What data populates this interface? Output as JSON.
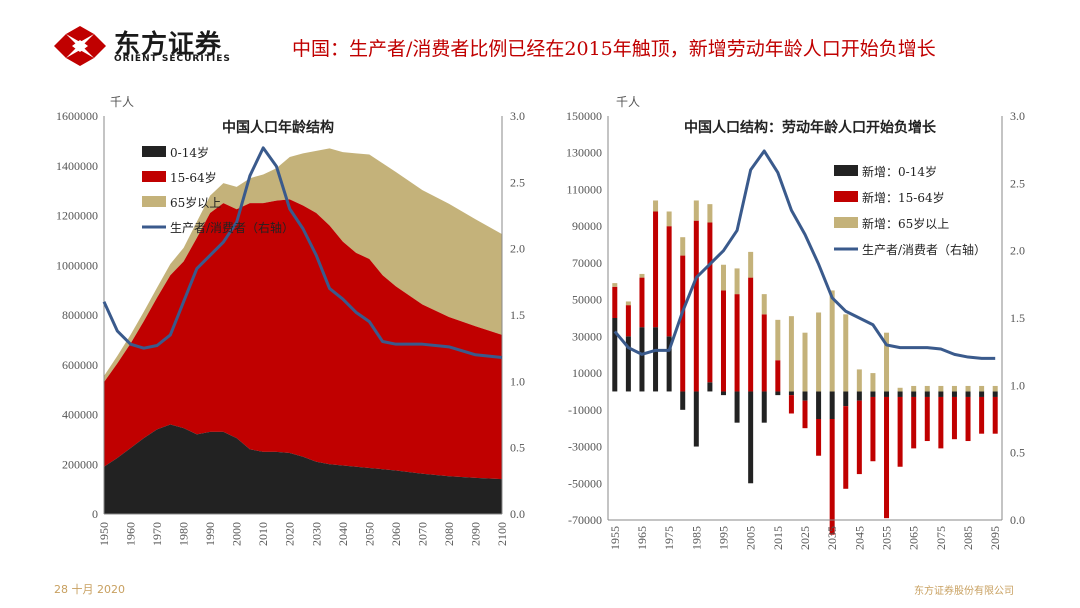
{
  "header": {
    "brand_name": "东方证券",
    "brand_sub": "ORIENT SECURITIES",
    "headline": "中国：生产者/消费者比例已经在2015年触顶，新增劳动年龄人口开始负增长"
  },
  "footer": {
    "date": "28 十月 2020",
    "company": "东方证券股份有限公司"
  },
  "colors": {
    "black": "#222222",
    "red": "#c00000",
    "tan": "#c4b27a",
    "blue": "#3a5a8c",
    "accent": "#c00000"
  },
  "chart_data": [
    {
      "type": "area",
      "title": "中国人口年龄结构",
      "unit_label": "千人",
      "x": [
        1950,
        1955,
        1960,
        1965,
        1970,
        1975,
        1980,
        1985,
        1990,
        1995,
        2000,
        2005,
        2010,
        2015,
        2020,
        2025,
        2030,
        2035,
        2040,
        2045,
        2050,
        2055,
        2060,
        2070,
        2080,
        2090,
        2100
      ],
      "xticks": [
        1950,
        1960,
        1970,
        1980,
        1990,
        2000,
        2010,
        2020,
        2030,
        2040,
        2050,
        2060,
        2070,
        2080,
        2090,
        2100
      ],
      "ylim": [
        0,
        1600000
      ],
      "yticks": [
        0,
        200000,
        400000,
        600000,
        800000,
        1000000,
        1200000,
        1400000,
        1600000
      ],
      "y2lim": [
        0.0,
        3.0
      ],
      "y2ticks": [
        "0.0",
        "0.5",
        "1.0",
        "1.5",
        "2.0",
        "2.5",
        "3.0"
      ],
      "series": [
        {
          "name": "0-14岁",
          "values": [
            190000,
            225000,
            265000,
            305000,
            340000,
            360000,
            345000,
            320000,
            330000,
            330000,
            305000,
            260000,
            250000,
            250000,
            245000,
            230000,
            210000,
            200000,
            195000,
            190000,
            185000,
            180000,
            175000,
            162000,
            152000,
            145000,
            140000
          ]
        },
        {
          "name": "15-64岁",
          "values": [
            340000,
            380000,
            420000,
            470000,
            530000,
            600000,
            670000,
            790000,
            880000,
            920000,
            920000,
            990000,
            1000000,
            1010000,
            1020000,
            1010000,
            1000000,
            960000,
            900000,
            860000,
            840000,
            780000,
            740000,
            680000,
            640000,
            610000,
            580000
          ]
        },
        {
          "name": "65岁以上",
          "values": [
            25000,
            30000,
            35000,
            38000,
            40000,
            45000,
            55000,
            65000,
            70000,
            80000,
            90000,
            100000,
            115000,
            130000,
            170000,
            210000,
            250000,
            310000,
            360000,
            400000,
            420000,
            450000,
            460000,
            460000,
            455000,
            430000,
            405000
          ]
        }
      ],
      "line": {
        "name": "生产者/消费者（右轴）",
        "values": [
          1.6,
          1.38,
          1.28,
          1.25,
          1.27,
          1.35,
          1.6,
          1.85,
          1.95,
          2.05,
          2.2,
          2.55,
          2.76,
          2.62,
          2.3,
          2.15,
          1.95,
          1.7,
          1.62,
          1.52,
          1.45,
          1.3,
          1.28,
          1.28,
          1.26,
          1.2,
          1.18
        ]
      },
      "legend": [
        "0-14岁",
        "15-64岁",
        "65岁以上",
        "生产者/消费者（右轴）"
      ]
    },
    {
      "type": "bar",
      "title": "中国人口结构：劳动年龄人口开始负增长",
      "unit_label": "千人",
      "categories": [
        1955,
        1960,
        1965,
        1970,
        1975,
        1980,
        1985,
        1990,
        1995,
        2000,
        2005,
        2010,
        2015,
        2020,
        2025,
        2030,
        2035,
        2040,
        2045,
        2050,
        2055,
        2060,
        2065,
        2070,
        2075,
        2080,
        2085,
        2090,
        2095
      ],
      "xticks": [
        1955,
        1965,
        1975,
        1985,
        1995,
        2005,
        2015,
        2025,
        2035,
        2045,
        2055,
        2065,
        2075,
        2085,
        2095
      ],
      "ylim": [
        -70000,
        150000
      ],
      "yticks": [
        -70000,
        -50000,
        -30000,
        -10000,
        10000,
        30000,
        50000,
        70000,
        90000,
        110000,
        130000,
        150000
      ],
      "y2lim": [
        0.0,
        3.0
      ],
      "y2ticks": [
        "0.0",
        "0.5",
        "1.0",
        "1.5",
        "2.0",
        "2.5",
        "3.0"
      ],
      "series": [
        {
          "name": "新增：0-14岁",
          "values": [
            40000,
            30000,
            35000,
            35000,
            30000,
            -10000,
            -30000,
            5000,
            -2000,
            -17000,
            -50000,
            -17000,
            -2000,
            -2000,
            -5000,
            -15000,
            -15000,
            -8000,
            -5000,
            -3000,
            -3000,
            -3000,
            -3000,
            -3000,
            -3000,
            -3000,
            -3000,
            -3000,
            -3000
          ]
        },
        {
          "name": "新增：15-64岁",
          "values": [
            17000,
            17000,
            27000,
            63000,
            60000,
            74000,
            93000,
            87000,
            55000,
            53000,
            62000,
            42000,
            17000,
            -10000,
            -15000,
            -20000,
            -63000,
            -45000,
            -40000,
            -35000,
            -66000,
            -38000,
            -28000,
            -24000,
            -28000,
            -23000,
            -24000,
            -20000,
            -20000
          ]
        },
        {
          "name": "新增：65岁以上",
          "values": [
            2000,
            2000,
            2000,
            6000,
            8000,
            10000,
            11000,
            10000,
            14000,
            14000,
            14000,
            11000,
            22000,
            41000,
            32000,
            43000,
            55000,
            42000,
            12000,
            10000,
            32000,
            2000,
            3000,
            3000,
            3000,
            3000,
            3000,
            3000,
            3000
          ]
        }
      ],
      "line": {
        "name": "生产者/消费者（右轴）",
        "values": [
          1.4,
          1.28,
          1.23,
          1.26,
          1.26,
          1.55,
          1.8,
          1.9,
          2.0,
          2.15,
          2.6,
          2.74,
          2.58,
          2.3,
          2.12,
          1.9,
          1.65,
          1.55,
          1.5,
          1.45,
          1.3,
          1.28,
          1.28,
          1.28,
          1.27,
          1.23,
          1.21,
          1.2,
          1.2
        ]
      },
      "legend": [
        "新增：0-14岁",
        "新增：15-64岁",
        "新增：65岁以上",
        "生产者/消费者（右轴）"
      ]
    }
  ]
}
